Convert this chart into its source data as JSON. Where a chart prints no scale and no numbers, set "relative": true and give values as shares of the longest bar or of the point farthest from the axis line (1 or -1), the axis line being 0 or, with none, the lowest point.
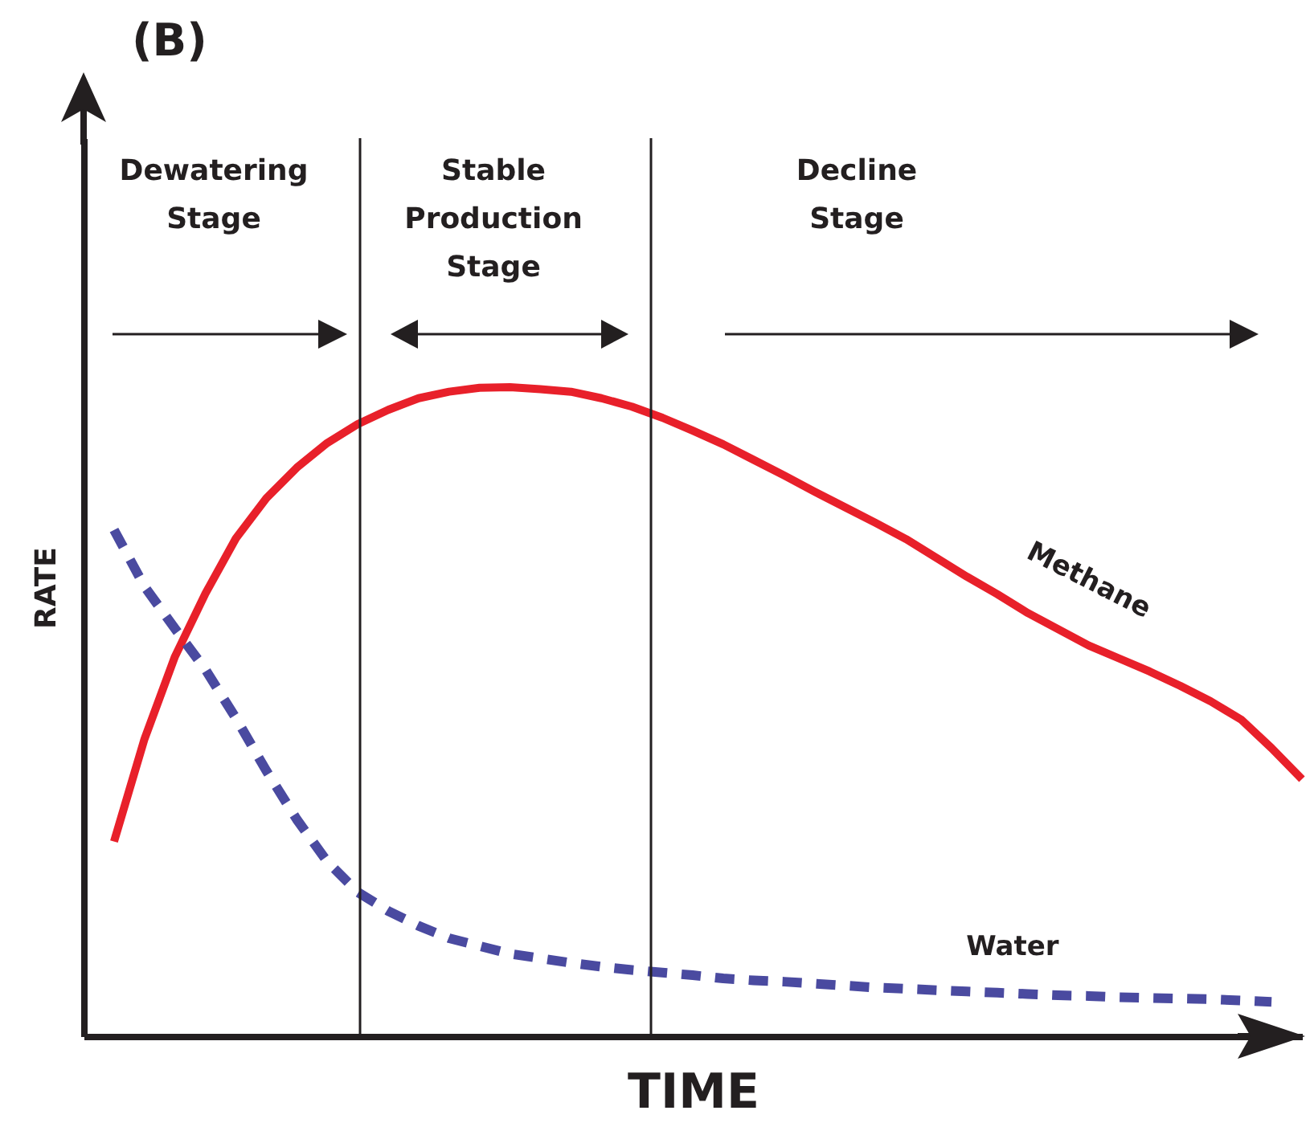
{
  "chart_data": {
    "type": "line",
    "title": "(B)",
    "xlabel": "TIME",
    "ylabel": "RATE",
    "relative": true,
    "categories": [
      null,
      null,
      null,
      null,
      null,
      null,
      null,
      null,
      null,
      null,
      null,
      null,
      null,
      null,
      null,
      null,
      null,
      null,
      null,
      null,
      null,
      null,
      null,
      null,
      null,
      null,
      null,
      null,
      null,
      null,
      null,
      null,
      null,
      null,
      null,
      null,
      null,
      null,
      null,
      null,
      null
    ],
    "series": [
      {
        "name": "Methane",
        "color": "#e8202a",
        "line_style": "solid",
        "values": [
          null,
          0.3,
          0.458,
          0.585,
          0.682,
          0.767,
          0.829,
          0.876,
          0.914,
          0.943,
          0.965,
          0.983,
          0.993,
          0.999,
          1.0,
          0.997,
          0.993,
          0.983,
          0.97,
          0.953,
          0.933,
          0.912,
          0.888,
          0.864,
          0.839,
          0.815,
          0.791,
          0.766,
          0.737,
          0.708,
          0.681,
          0.652,
          0.627,
          0.602,
          0.582,
          0.562,
          0.54,
          0.516,
          0.488,
          0.444,
          0.396
        ]
      },
      {
        "name": "Water",
        "color": "#4a4aa0",
        "line_style": "dashed",
        "values": [
          null,
          0.78,
          0.693,
          0.628,
          0.565,
          0.49,
          0.409,
          0.334,
          0.269,
          0.222,
          0.193,
          0.17,
          0.151,
          0.139,
          0.127,
          0.12,
          0.113,
          0.107,
          0.102,
          0.098,
          0.094,
          0.089,
          0.086,
          0.084,
          0.081,
          0.078,
          0.075,
          0.073,
          0.071,
          0.069,
          0.067,
          0.065,
          0.063,
          0.062,
          0.06,
          0.059,
          0.058,
          0.057,
          0.055,
          0.053,
          null
        ]
      }
    ],
    "annotations": [
      "Dewatering\nStage",
      "Stable\nProduction\nStage",
      "Decline\nStage"
    ]
  }
}
